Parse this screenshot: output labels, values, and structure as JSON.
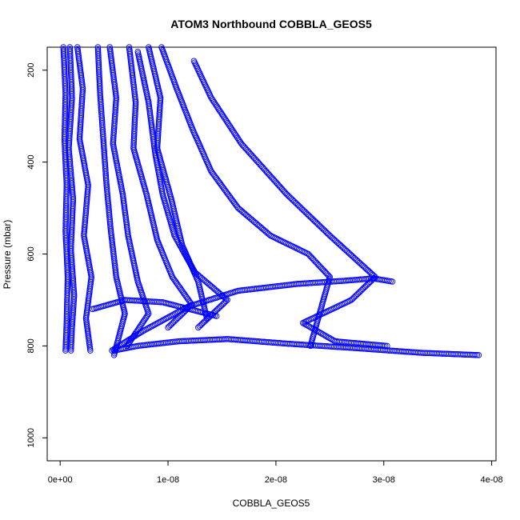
{
  "chart_data": {
    "type": "scatter",
    "title": "ATOM3 Northbound COBBLA_GEOS5",
    "xlabel": "COBBLA_GEOS5",
    "ylabel": "Pressure (mbar)",
    "xlim": [
      -1.2e-09,
      4.04e-08
    ],
    "ylim": [
      1050,
      150
    ],
    "y_reversed": true,
    "x_ticks": [
      {
        "value": 0,
        "label": "0e+00"
      },
      {
        "value": 1e-08,
        "label": "1e-08"
      },
      {
        "value": 2e-08,
        "label": "2e-08"
      },
      {
        "value": 3e-08,
        "label": "3e-08"
      },
      {
        "value": 4e-08,
        "label": "4e-08"
      }
    ],
    "y_ticks": [
      {
        "value": 200,
        "label": "200"
      },
      {
        "value": 400,
        "label": "400"
      },
      {
        "value": 600,
        "label": "600"
      },
      {
        "value": 800,
        "label": "800"
      },
      {
        "value": 1000,
        "label": "1000"
      }
    ],
    "marker": "open-circle",
    "color": "#0000ff",
    "grid": false,
    "series": [
      {
        "x": [
          3e-10,
          5e-10,
          4e-10,
          6e-10,
          5e-10,
          7e-10,
          6e-10,
          5e-10
        ],
        "y": [
          150,
          250,
          350,
          450,
          550,
          650,
          750,
          810
        ]
      },
      {
        "x": [
          9e-10,
          1.1e-09,
          8e-10,
          1.2e-09,
          1e-09,
          1.3e-09,
          1.1e-09,
          1e-09
        ],
        "y": [
          150,
          260,
          370,
          480,
          590,
          690,
          760,
          810
        ]
      },
      {
        "x": [
          1.6e-09,
          2.1e-09,
          1.8e-09,
          2.6e-09,
          2.2e-09,
          2.9e-09,
          2.4e-09,
          2.8e-09
        ],
        "y": [
          150,
          240,
          350,
          450,
          560,
          650,
          740,
          810
        ]
      },
      {
        "x": [
          3.5e-09,
          3.7e-09,
          4e-09,
          4.3e-09,
          4.7e-09,
          5.2e-09,
          6e-09,
          5e-09
        ],
        "y": [
          150,
          250,
          350,
          450,
          550,
          650,
          730,
          820
        ]
      },
      {
        "x": [
          4.6e-09,
          5.2e-09,
          4.9e-09,
          5.8e-09,
          6.3e-09,
          7.2e-09,
          8.2e-09,
          6.2e-09
        ],
        "y": [
          150,
          260,
          360,
          470,
          560,
          660,
          730,
          800
        ]
      },
      {
        "x": [
          6.4e-09,
          7e-09,
          6.8e-09,
          8e-09,
          9e-09,
          1.04e-08,
          1.22e-08,
          1e-08
        ],
        "y": [
          150,
          270,
          370,
          470,
          570,
          650,
          710,
          760
        ]
      },
      {
        "x": [
          7.2e-09,
          8.2e-09,
          8.8e-09,
          9.5e-09,
          1.06e-08,
          1.25e-08,
          1.55e-08,
          1.28e-08
        ],
        "y": [
          160,
          270,
          380,
          470,
          560,
          640,
          700,
          760
        ]
      },
      {
        "x": [
          8.2e-09,
          9.3e-09,
          9e-09,
          1.03e-08,
          1.13e-08,
          1.28e-08,
          1.36e-08
        ],
        "y": [
          150,
          260,
          370,
          480,
          580,
          660,
          740
        ]
      },
      {
        "x": [
          9.4e-09,
          1.08e-08,
          1.23e-08,
          1.4e-08,
          1.65e-08,
          1.95e-08,
          2.3e-08,
          2.5e-08,
          2.32e-08
        ],
        "y": [
          150,
          240,
          330,
          420,
          500,
          560,
          600,
          650,
          800
        ]
      },
      {
        "x": [
          1.24e-08,
          1.4e-08,
          1.68e-08,
          2.1e-08,
          2.5e-08,
          2.92e-08,
          2.7e-08,
          2.25e-08,
          2.55e-08,
          3.03e-08
        ],
        "y": [
          180,
          260,
          360,
          470,
          560,
          650,
          700,
          750,
          790,
          800
        ]
      },
      {
        "x": [
          5e-09,
          7.2e-09,
          1.1e-08,
          1.55e-08,
          2.1e-08,
          2.75e-08,
          3.35e-08,
          3.88e-08
        ],
        "y": [
          810,
          800,
          790,
          785,
          795,
          805,
          815,
          820
        ]
      },
      {
        "x": [
          4.8e-09,
          7.5e-09,
          1.18e-08,
          1.65e-08,
          2.2e-08,
          2.65e-08,
          2.9e-08,
          3.08e-08
        ],
        "y": [
          810,
          770,
          715,
          680,
          665,
          658,
          653,
          660
        ]
      },
      {
        "x": [
          3e-09,
          6e-09,
          9.5e-09,
          1.2e-08,
          1.45e-08
        ],
        "y": [
          720,
          700,
          705,
          720,
          735
        ]
      }
    ]
  }
}
